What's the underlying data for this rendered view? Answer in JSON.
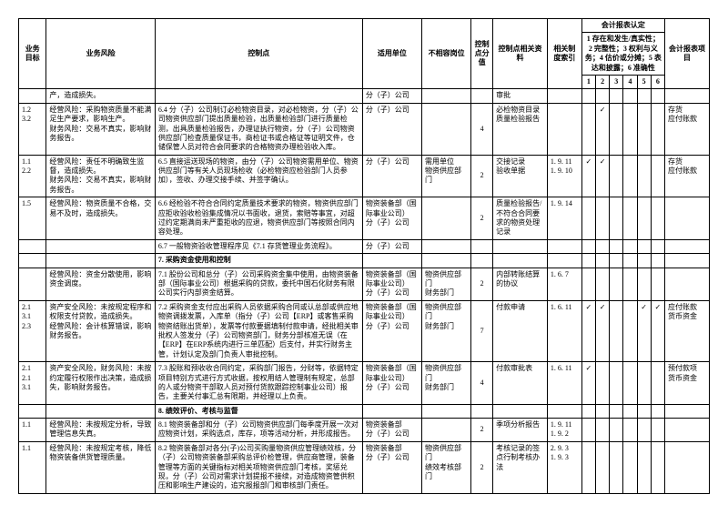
{
  "header": {
    "col_objective": "业务目标",
    "col_risk": "业务风险",
    "col_control": "控制点",
    "col_unit": "适用单位",
    "col_incompat": "不相容岗位",
    "col_score": "控制点分值",
    "col_related": "控制点相关资料",
    "col_index": "相关制度索引",
    "col_assert_group": "会计报表认定",
    "col_assert_sub": "1 存在和发生/真实性；2 完整性；3 权利与义务；4 估价或分摊；5 表达和披露；6 准确性",
    "col_item": "会计报表项目",
    "num1": "1",
    "num2": "2",
    "num3": "3",
    "num4": "4",
    "num5": "5",
    "num6": "6"
  },
  "rows": {
    "r0": {
      "risk": "产，造成损失。",
      "unit": "分（子）公司",
      "related": "审批"
    },
    "r1": {
      "obj": "1.2\n3.2",
      "risk": "经营风险：采购物资质量不能满足生产要求，影响生产。\n财务风险：交易不真实，影响财务报告。",
      "ctrl": "6.4 分（子）公司制订必检物资目录，对必检物资，分（子）公司物资供应部门提出质量检验，出质量检验部门进行质量检测，出具质量检验报告，办理证执行物资，分（子）公司物资供应部门检查质量保证书，商检证书或合格证等证明文件，仓储保管人员对符合会同要求的合格物资办理检验收入库。",
      "unit": "分（子）公司",
      "incompat": "",
      "score": "4",
      "related": "必检物资目录\n质量检验报告",
      "index": "",
      "a1": "",
      "a2": "✓",
      "a3": "",
      "a4": "",
      "a5": "",
      "a6": "",
      "item": "存货\n应付账款"
    },
    "r2": {
      "obj": "1.1\n2.2",
      "risk": "经营风险：责任不明确致生监督，造成损失。\n财务风险：交易不真实，影响财务报告。",
      "ctrl": "6.5 直接运送现场的物资，由分（子）公司物资需用单位、物资供应部门等有关人员现场检收（必检物资应检验部门人员参加），签收、办理交接手续、并签字确认。",
      "unit": "分（子）公司",
      "incompat": "需用单位\n物资供应部门",
      "score": "2",
      "related": "交接记录\n验收单据",
      "index": "1. 9. 11\n1. 9. 10",
      "a1": "✓",
      "a2": "✓",
      "a3": "",
      "a4": "",
      "a5": "",
      "a6": "",
      "item": "存货\n应付账款"
    },
    "r3": {
      "obj": "1.5",
      "risk": "经营风险：物资质量不合格，交易不及时，造成损失。",
      "ctrl": "6.6 经检验不符合合同约定质量技术要求的物资，物资供应部门应拒收验收检验集成情况以书面收，退货，索赔等事宜，对超过约定期满尚未严重拒收的应退，物资供应部门等按照合同内容处理。",
      "unit": "物资装备部（国际事业公司）\n分（子）公司",
      "incompat": "",
      "score": "2",
      "related": "质量检验报告/不符合合同要求的物资处理记录",
      "index": "1. 9. 14",
      "a1": "",
      "a2": "",
      "a3": "",
      "a4": "",
      "a5": "",
      "a6": "",
      "item": ""
    },
    "r4": {
      "ctrl": "6.7 一般物资验收管理程序见《7.1 存货管理业务流程》。",
      "unit": "分（子）公司"
    },
    "section7": "7. 采购资金使用和控制",
    "r5": {
      "obj": "",
      "risk": "经营风险：资金分散使用，影响资金调度。",
      "ctrl": "7.1 股份公司和总分（子）公司采购资金集中使用，由物资装备部（国际事业公司）根据采购的贷款，委托中国石化财务有限公司实行内部资金结算。",
      "unit": "物资装备部（国际事业公司）\n分（子）公司",
      "incompat": "物资供应部门\n财务部门",
      "score": "2",
      "related": "内部转账结算的协议",
      "index": "1. 6. 7",
      "a1": "",
      "a2": "",
      "a3": "",
      "a4": "",
      "a6": "",
      "item": ""
    },
    "r6": {
      "obj": "2.1\n3.1\n2.3",
      "risk": "资产安全风险：未按规定程序和权限支付贷款，造成损失。\n经营风险：会计核算错误，影响财务报告。",
      "ctrl": "7.2 采购资金支付应出采购人员依据采购合同或认总部或供应地物资调拨发票，入库单（指分（子）公司【ERP】或客售采购物资结账出货单），发票等付款要据填制付款申请，经批相关审批权人签发分（子）公司物资部门，财务分部核准无误（在【ERP】在ERP系统内进行三单匹配）后支付，并实行财务主管，计划认定及部门负责人审批控制。",
      "unit": "物资装备部（国际事业公司）\n分（子）公司",
      "incompat": "物资供应部门\n财务部门",
      "score": "7",
      "related": "付款申请",
      "index": "1. 6. 11",
      "a1": "✓",
      "a2": "✓",
      "a3": "",
      "a4": "",
      "a5": "✓",
      "a6": "✓",
      "item": "应付账款\n货币资金"
    },
    "r7": {
      "obj": "2.1\n2.1\n3.1",
      "risk": "资产安全风险，财务风险：未按约定履行权限作出决策，造成损失，影响财务报告。",
      "ctrl": "7.3 股账和预收收合同约定，采购部门报告，分财等，依据特定项目特别方式进行方式收据，按权用结人管理制有规定，总部的人或分物资干部取人员对预付货款跟踪控制事业公司）报告，主要关付事汇总有限期，并经理以上负责。",
      "unit": "物资装备部（国际事业公司）\n分（子）公司",
      "incompat": "物资供应部门\n财务部门",
      "score": "4",
      "related": "付款审批表",
      "index": "1. 6. 11",
      "a1": "✓",
      "a2": "",
      "a3": "",
      "a4": "",
      "a5": "",
      "a6": "",
      "item": "预付款项\n货币资金"
    },
    "section8": "8. 绩效评价、考核与监督",
    "r8": {
      "obj": "1.1",
      "risk": "经营风险：未按规定分析，导致管理信息失真。",
      "ctrl": "8.1 物资装备部和分（子）公司物资供应部门每季度开展一次对应物资计划，采购选点，库存，项等活动分析，并形成报告。",
      "unit": "物资装备部\n分（子）公司",
      "incompat": "",
      "score": "2",
      "related": "季项分析报告",
      "index": "1. 9. 11\n1. 9. 2",
      "a1": "",
      "a2": "",
      "a3": "",
      "a4": "",
      "a5": "",
      "a6": "",
      "item": ""
    },
    "r9": {
      "obj": "1.1",
      "risk": "经营风险：未按规定考核，降低物资装备供货管理质量。",
      "ctrl": "8.2 物资装备部对各分(子)公司买购量物资供应管理绩效核，分（子）公司物资装备部采购总评价检管理，供应商管理，装备管理等方面的关键指标对相关项物资供应部门考核，奖惩兑现，分（子）公司对需求计划提报不接续，对造成物资管供积压和影响生产建设的，追究报报部门和审核部门责任。",
      "unit": "物资装备部\n分（子）公司",
      "incompat": "物资供应部门\n绩效考核部门",
      "score": "2",
      "related": "考核记录的签点行制考核办法",
      "index": "2. 9. 3\n1. 9. 3",
      "a1": "",
      "a2": "",
      "a3": "",
      "a4": "",
      "a5": "",
      "a6": "",
      "item": ""
    }
  }
}
